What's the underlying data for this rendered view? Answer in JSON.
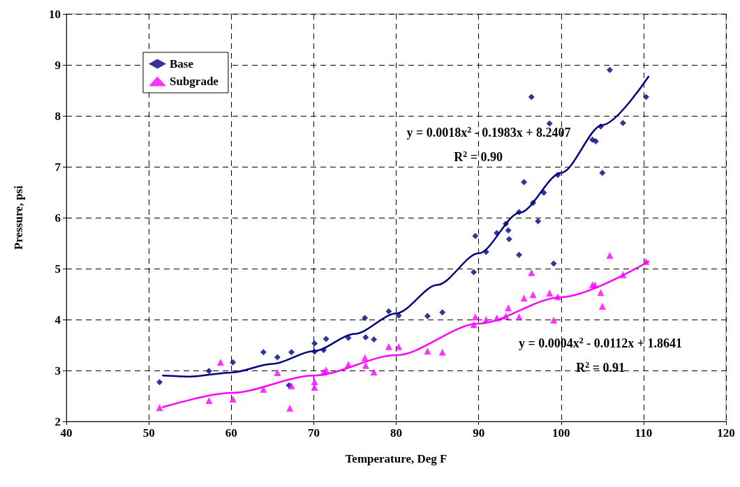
{
  "chart_data": {
    "type": "scatter",
    "xlabel": "Temperature, Deg F",
    "ylabel": "Pressure, psi",
    "xlim": [
      40,
      120
    ],
    "xticks": [
      40,
      50,
      60,
      70,
      80,
      90,
      100,
      110,
      120
    ],
    "ylim": [
      2,
      10
    ],
    "yticks": [
      2,
      3,
      4,
      5,
      6,
      7,
      8,
      9,
      10
    ],
    "grid": true,
    "legend": "top left",
    "series": [
      {
        "name": "Base",
        "color": "#000080",
        "marker": "diamond",
        "x": [
          51.3,
          57.3,
          60.2,
          63.9,
          65.6,
          67.3,
          67.0,
          70.1,
          70.1,
          71.2,
          71.5,
          74.2,
          76.2,
          76.3,
          77.3,
          79.1,
          80.3,
          83.8,
          85.6,
          89.6,
          89.4,
          90.9,
          92.2,
          93.3,
          93.6,
          93.7,
          94.9,
          94.9,
          95.5,
          96.6,
          97.2,
          97.9,
          99.6,
          99.1,
          105.0,
          96.4,
          105.9,
          110.3,
          98.6,
          104.8,
          107.5,
          103.8,
          104.2
        ],
        "values": [
          2.77,
          2.99,
          3.16,
          3.36,
          3.26,
          3.36,
          2.71,
          3.53,
          3.37,
          3.4,
          3.62,
          3.64,
          4.03,
          3.65,
          3.61,
          4.16,
          4.08,
          4.07,
          4.14,
          5.64,
          4.93,
          5.33,
          5.7,
          5.88,
          5.75,
          5.58,
          6.11,
          5.27,
          6.7,
          6.29,
          5.93,
          6.49,
          6.84,
          5.1,
          6.88,
          8.37,
          8.9,
          8.37,
          7.85,
          7.79,
          7.86,
          7.53,
          7.5
        ]
      },
      {
        "name": "Subgrade",
        "color": "#ff00ff",
        "marker": "triangle",
        "x": [
          51.3,
          57.3,
          58.7,
          60.2,
          63.9,
          65.6,
          67.1,
          67.3,
          70.1,
          70.1,
          71.2,
          71.5,
          74.2,
          76.2,
          76.3,
          77.3,
          79.1,
          80.3,
          83.8,
          85.6,
          89.6,
          89.4,
          90.9,
          92.2,
          93.3,
          93.6,
          94.9,
          95.5,
          96.6,
          96.4,
          98.6,
          99.1,
          99.6,
          103.8,
          104.1,
          104.8,
          105.0,
          105.9,
          107.5,
          110.3
        ],
        "values": [
          2.27,
          2.41,
          3.16,
          2.44,
          2.63,
          2.96,
          2.26,
          2.7,
          2.78,
          2.67,
          2.97,
          3.01,
          3.12,
          3.25,
          3.1,
          2.97,
          3.47,
          3.47,
          3.38,
          3.36,
          4.05,
          3.9,
          4.0,
          4.03,
          4.07,
          4.23,
          4.05,
          4.42,
          4.49,
          4.92,
          4.52,
          3.99,
          4.45,
          4.68,
          4.68,
          4.53,
          4.26,
          5.26,
          4.88,
          5.14
        ]
      },
      {
        "type": "line",
        "color": "#000080",
        "marker": "none",
        "line_style": "solid",
        "x": [
          51.7,
          55,
          60,
          65,
          70,
          75,
          80,
          85,
          90,
          95,
          100,
          105,
          110.6
        ],
        "values": [
          2.9,
          2.88,
          2.96,
          3.13,
          3.38,
          3.72,
          4.12,
          4.68,
          5.3,
          6.1,
          6.88,
          7.82,
          8.77
        ]
      },
      {
        "type": "line",
        "color": "#ff00ff",
        "marker": "none",
        "line_style": "solid",
        "x": [
          51.7,
          60,
          70,
          80,
          90,
          100,
          110.6
        ],
        "values": [
          2.28,
          2.56,
          2.9,
          3.3,
          3.92,
          4.44,
          5.14
        ]
      }
    ],
    "annotations": [
      "y = 0.0018x$^{2}$ - 0.1983x + 8.2407",
      "R$^{2}$ = 0.90",
      "y = 0.0004x$^{2}$ - 0.0112x + 1.8641",
      "R$^{2}$ = 0.91"
    ]
  }
}
